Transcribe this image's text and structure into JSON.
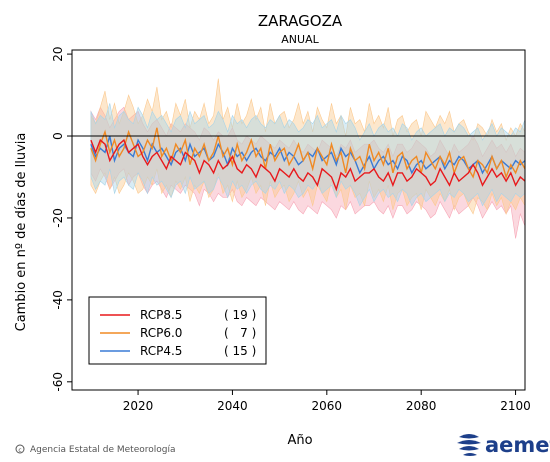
{
  "chart_data": {
    "type": "line",
    "title": "ZARAGOZA",
    "subtitle": "ANUAL",
    "xlabel": "Año",
    "ylabel": "Cambio en nº de días de lluvia",
    "xlim": [
      2006,
      2102
    ],
    "ylim": [
      -62,
      21
    ],
    "x_ticks": [
      2020,
      2040,
      2060,
      2080,
      2100
    ],
    "y_ticks": [
      20,
      0,
      -20,
      -40,
      -60
    ],
    "grid": false,
    "legend_position": "bottom-left",
    "x_start": 2010,
    "series": [
      {
        "name": "RCP8.5",
        "count": "( 19 )",
        "color": "#e8191c",
        "band_color": "#f7a8b8",
        "values": [
          -1,
          -4,
          -1,
          -2,
          -6,
          -4,
          -2,
          -1,
          -4,
          -3,
          -2,
          -5,
          -7,
          -5,
          -4,
          -6,
          -8,
          -5,
          -6,
          -7,
          -4,
          -5,
          -6,
          -9,
          -6,
          -7,
          -9,
          -6,
          -8,
          -7,
          -5,
          -8,
          -9,
          -7,
          -8,
          -10,
          -7,
          -8,
          -9,
          -11,
          -8,
          -9,
          -10,
          -8,
          -10,
          -11,
          -9,
          -10,
          -12,
          -8,
          -9,
          -10,
          -13,
          -9,
          -10,
          -8,
          -11,
          -10,
          -9,
          -9,
          -8,
          -10,
          -11,
          -9,
          -12,
          -9,
          -9,
          -11,
          -10,
          -8,
          -9,
          -10,
          -12,
          -11,
          -8,
          -10,
          -12,
          -9,
          -11,
          -10,
          -9,
          -7,
          -9,
          -12,
          -10,
          -8,
          -10,
          -9,
          -11,
          -9,
          -12,
          -10,
          -11
        ],
        "low": [
          -9,
          -11,
          -8,
          -10,
          -13,
          -11,
          -9,
          -8,
          -12,
          -10,
          -9,
          -12,
          -14,
          -12,
          -11,
          -13,
          -15,
          -12,
          -13,
          -14,
          -12,
          -13,
          -14,
          -17,
          -13,
          -14,
          -16,
          -14,
          -15,
          -15,
          -13,
          -16,
          -17,
          -15,
          -16,
          -17,
          -15,
          -16,
          -17,
          -18,
          -16,
          -17,
          -18,
          -16,
          -18,
          -19,
          -17,
          -18,
          -19,
          -16,
          -17,
          -18,
          -20,
          -17,
          -18,
          -16,
          -19,
          -18,
          -17,
          -17,
          -16,
          -18,
          -19,
          -17,
          -20,
          -17,
          -17,
          -19,
          -18,
          -16,
          -17,
          -18,
          -20,
          -19,
          -16,
          -18,
          -20,
          -17,
          -19,
          -18,
          -17,
          -15,
          -17,
          -20,
          -18,
          -16,
          -18,
          -17,
          -19,
          -17,
          -25,
          -19,
          -22
        ],
        "high": [
          6,
          4,
          7,
          5,
          2,
          4,
          6,
          7,
          4,
          5,
          6,
          3,
          1,
          3,
          4,
          2,
          0,
          3,
          2,
          1,
          3,
          2,
          1,
          -1,
          2,
          1,
          -1,
          1,
          0,
          0,
          2,
          -1,
          -2,
          0,
          -1,
          -2,
          0,
          -1,
          -2,
          -3,
          -1,
          -2,
          -3,
          -1,
          -3,
          -4,
          -2,
          -3,
          -4,
          -1,
          -2,
          -3,
          -5,
          -2,
          -3,
          -1,
          -4,
          -3,
          -2,
          -2,
          -1,
          -3,
          -4,
          -2,
          -5,
          -2,
          -2,
          -4,
          -3,
          -1,
          -2,
          -3,
          -5,
          -4,
          -1,
          -3,
          -5,
          -2,
          -4,
          -3,
          -2,
          0,
          -2,
          -5,
          -3,
          -1,
          -3,
          -2,
          -4,
          -2,
          -5,
          -3,
          -4
        ]
      },
      {
        "name": "RCP6.0",
        "count": "(   7 )",
        "color": "#f08a24",
        "band_color": "#fbc98f",
        "values": [
          -3,
          -6,
          -2,
          1,
          -4,
          -1,
          -5,
          -3,
          1,
          -2,
          -5,
          -4,
          -1,
          -3,
          2,
          -5,
          -3,
          -6,
          -2,
          -4,
          -1,
          -7,
          -3,
          -5,
          -2,
          -6,
          -4,
          0,
          -5,
          -3,
          -7,
          -2,
          -6,
          -4,
          -1,
          -5,
          -3,
          -8,
          -2,
          -6,
          -4,
          -3,
          -7,
          -5,
          -2,
          -6,
          -4,
          -8,
          -3,
          -5,
          -7,
          -2,
          -6,
          -4,
          -9,
          -3,
          -6,
          -5,
          -8,
          -2,
          -6,
          -4,
          -7,
          -3,
          -9,
          -5,
          -4,
          -8,
          -6,
          -5,
          -9,
          -4,
          -6,
          -8,
          -5,
          -7,
          -4,
          -9,
          -6,
          -5,
          -8,
          -10,
          -6,
          -7,
          -9,
          -5,
          -8,
          -6,
          -10,
          -7,
          -9,
          -6,
          -8
        ],
        "low": [
          -12,
          -14,
          -11,
          -9,
          -13,
          -10,
          -14,
          -12,
          -9,
          -11,
          -14,
          -13,
          -10,
          -12,
          -8,
          -14,
          -12,
          -15,
          -11,
          -13,
          -10,
          -16,
          -12,
          -14,
          -11,
          -15,
          -13,
          -9,
          -14,
          -12,
          -16,
          -11,
          -15,
          -13,
          -10,
          -14,
          -12,
          -17,
          -11,
          -15,
          -13,
          -12,
          -16,
          -14,
          -11,
          -15,
          -13,
          -17,
          -12,
          -14,
          -16,
          -11,
          -15,
          -13,
          -18,
          -12,
          -15,
          -14,
          -17,
          -11,
          -15,
          -13,
          -16,
          -12,
          -18,
          -14,
          -13,
          -17,
          -15,
          -14,
          -18,
          -13,
          -15,
          -17,
          -14,
          -16,
          -13,
          -18,
          -15,
          -14,
          -17,
          -19,
          -15,
          -16,
          -18,
          -14,
          -17,
          -15,
          -19,
          -16,
          -18,
          -15,
          -17
        ],
        "high": [
          5,
          3,
          7,
          11,
          4,
          8,
          3,
          6,
          10,
          7,
          3,
          5,
          9,
          6,
          12,
          4,
          6,
          2,
          8,
          5,
          9,
          2,
          6,
          4,
          8,
          3,
          5,
          14,
          4,
          7,
          2,
          8,
          3,
          5,
          9,
          4,
          7,
          1,
          8,
          3,
          5,
          6,
          2,
          4,
          8,
          3,
          6,
          1,
          7,
          4,
          2,
          8,
          3,
          5,
          0,
          7,
          3,
          4,
          1,
          8,
          3,
          5,
          2,
          7,
          0,
          4,
          5,
          1,
          3,
          4,
          0,
          6,
          4,
          2,
          5,
          3,
          6,
          1,
          3,
          4,
          1,
          -1,
          3,
          2,
          0,
          4,
          1,
          3,
          -1,
          2,
          0,
          3,
          1
        ]
      },
      {
        "name": "RCP4.5",
        "count": "( 15 )",
        "color": "#3a7bd5",
        "band_color": "#a8d4e8",
        "values": [
          -2,
          -5,
          -3,
          -4,
          0,
          -6,
          -3,
          -2,
          -4,
          -5,
          -1,
          -3,
          -6,
          -2,
          -4,
          -3,
          -5,
          -7,
          -4,
          -3,
          -6,
          -2,
          -5,
          -4,
          -3,
          -6,
          -5,
          -2,
          -4,
          -7,
          -3,
          -5,
          -4,
          -6,
          -4,
          -3,
          -5,
          -6,
          -4,
          -5,
          -3,
          -6,
          -4,
          -5,
          -7,
          -6,
          -4,
          -5,
          -3,
          -6,
          -5,
          -4,
          -7,
          -3,
          -5,
          -4,
          -6,
          -9,
          -7,
          -5,
          -8,
          -6,
          -5,
          -7,
          -6,
          -8,
          -5,
          -6,
          -9,
          -7,
          -6,
          -8,
          -7,
          -6,
          -5,
          -8,
          -6,
          -7,
          -5,
          -6,
          -8,
          -7,
          -6,
          -9,
          -7,
          -5,
          -8,
          -6,
          -7,
          -8,
          -6,
          -7,
          -6
        ],
        "low": [
          -10,
          -13,
          -11,
          -12,
          -8,
          -14,
          -11,
          -10,
          -12,
          -13,
          -9,
          -11,
          -14,
          -10,
          -12,
          -11,
          -13,
          -15,
          -12,
          -11,
          -14,
          -10,
          -13,
          -12,
          -11,
          -14,
          -13,
          -10,
          -12,
          -15,
          -11,
          -13,
          -12,
          -14,
          -12,
          -11,
          -13,
          -14,
          -12,
          -13,
          -11,
          -14,
          -12,
          -13,
          -15,
          -14,
          -12,
          -13,
          -11,
          -14,
          -13,
          -12,
          -15,
          -11,
          -13,
          -12,
          -14,
          -17,
          -15,
          -13,
          -16,
          -14,
          -13,
          -15,
          -14,
          -16,
          -13,
          -14,
          -17,
          -15,
          -14,
          -16,
          -15,
          -14,
          -13,
          -16,
          -14,
          -15,
          -13,
          -14,
          -16,
          -15,
          -14,
          -17,
          -15,
          -13,
          -16,
          -14,
          -15,
          -16,
          -14,
          -15,
          -14
        ],
        "high": [
          6,
          3,
          5,
          4,
          8,
          2,
          5,
          6,
          4,
          3,
          7,
          5,
          2,
          6,
          4,
          5,
          3,
          1,
          4,
          5,
          2,
          6,
          3,
          4,
          5,
          2,
          3,
          6,
          4,
          1,
          5,
          3,
          4,
          2,
          4,
          5,
          3,
          2,
          4,
          3,
          5,
          2,
          4,
          3,
          1,
          2,
          4,
          3,
          5,
          2,
          3,
          4,
          1,
          5,
          3,
          4,
          2,
          -1,
          1,
          3,
          0,
          2,
          3,
          1,
          2,
          0,
          3,
          2,
          -1,
          1,
          2,
          0,
          1,
          2,
          3,
          0,
          2,
          1,
          3,
          2,
          0,
          1,
          2,
          -1,
          1,
          3,
          0,
          2,
          1,
          0,
          2,
          1,
          4
        ]
      }
    ]
  },
  "credit": "Agencia Estatal de Meteorología",
  "brand": "aemet"
}
